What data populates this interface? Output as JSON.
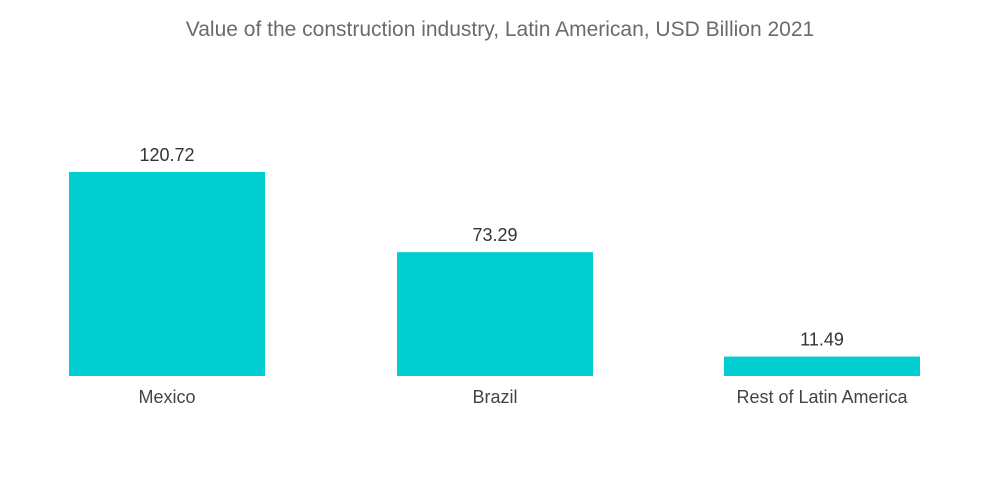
{
  "chart_data": {
    "type": "bar",
    "title": "Value of the construction industry, Latin American, USD Billion 2021",
    "categories": [
      "Mexico",
      "Brazil",
      "Rest of Latin America"
    ],
    "values": [
      120.72,
      73.29,
      11.49
    ],
    "value_labels": [
      "120.72",
      "73.29",
      "11.49"
    ],
    "xlabel": "",
    "ylabel": "",
    "ylim": [
      0,
      120.72
    ],
    "grid": false,
    "legend": "none",
    "bar_color": "#00CED1"
  }
}
